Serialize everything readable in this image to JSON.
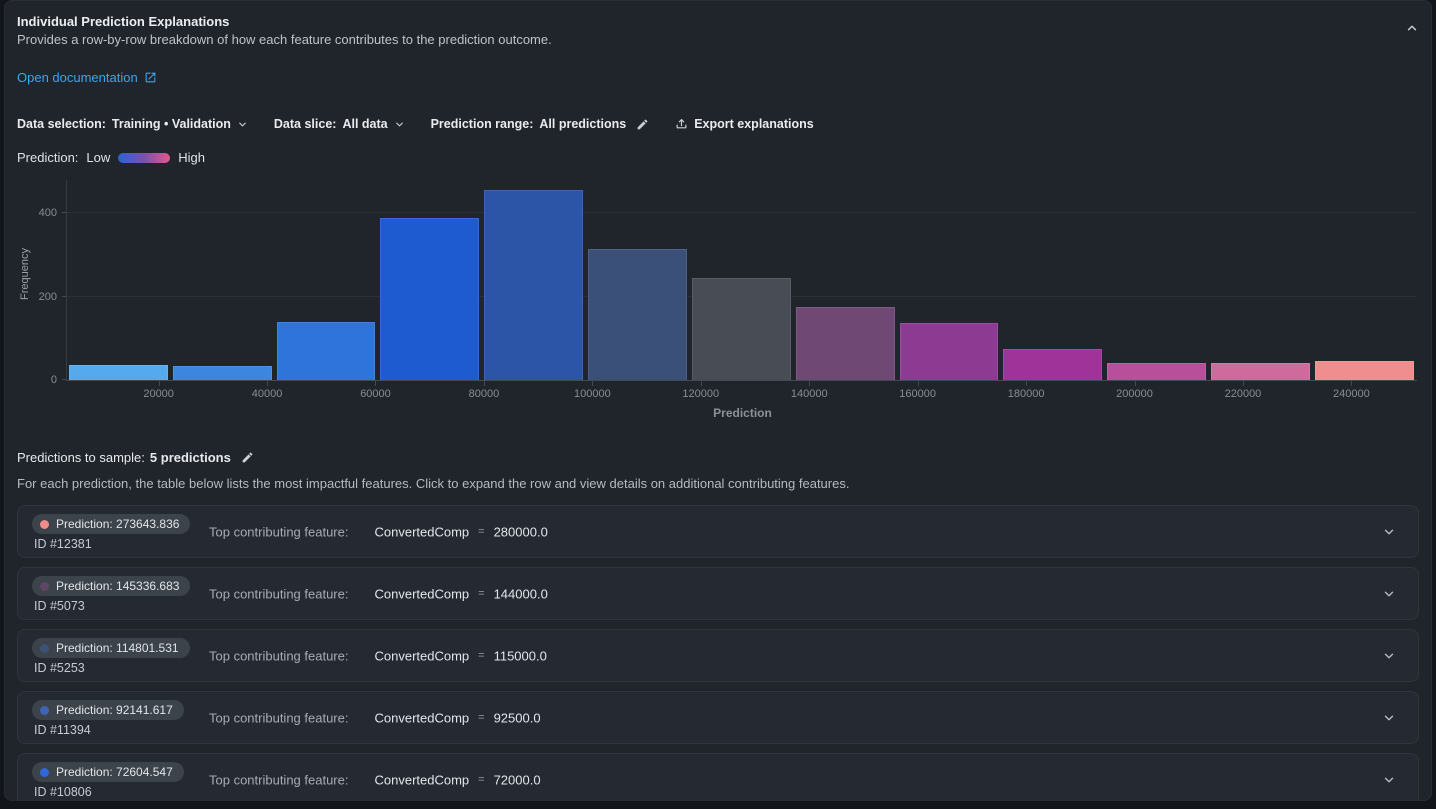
{
  "panel": {
    "title": "Individual Prediction Explanations",
    "subtitle": "Provides a row-by-row breakdown of how each feature contributes to the prediction outcome.",
    "doc_link": "Open documentation"
  },
  "toolbar": {
    "data_selection_label": "Data selection:",
    "data_selection_value": "Training • Validation",
    "data_slice_label": "Data slice:",
    "data_slice_value": "All data",
    "prediction_range_label": "Prediction range:",
    "prediction_range_value": "All predictions",
    "export_label": "Export explanations"
  },
  "legend": {
    "label": "Prediction:",
    "low": "Low",
    "high": "High",
    "gradient": [
      "#2c63d5",
      "#7a50b0",
      "#e4578c"
    ]
  },
  "chart_data": {
    "type": "bar",
    "title": "Prediction histogram",
    "xlabel": "Prediction",
    "ylabel": "Frequency",
    "xlim": [
      3100,
      252100
    ],
    "ylim": [
      0,
      480
    ],
    "yticks": [
      0,
      200,
      400
    ],
    "xticks": [
      20000,
      40000,
      60000,
      80000,
      100000,
      120000,
      140000,
      160000,
      180000,
      200000,
      220000,
      240000
    ],
    "grid": true,
    "bins": [
      {
        "start": 3100,
        "end": 22250,
        "count": 36,
        "color": "#55a9ec"
      },
      {
        "start": 22250,
        "end": 41400,
        "count": 33,
        "color": "#3c86e0"
      },
      {
        "start": 41400,
        "end": 60550,
        "count": 140,
        "color": "#2e74da"
      },
      {
        "start": 60550,
        "end": 79700,
        "count": 390,
        "color": "#1f5bd0"
      },
      {
        "start": 79700,
        "end": 98850,
        "count": 455,
        "color": "#2c55a7"
      },
      {
        "start": 98850,
        "end": 118000,
        "count": 315,
        "color": "#3a5078"
      },
      {
        "start": 118000,
        "end": 137150,
        "count": 245,
        "color": "#474c55"
      },
      {
        "start": 137150,
        "end": 156300,
        "count": 175,
        "color": "#6f4874"
      },
      {
        "start": 156300,
        "end": 175450,
        "count": 138,
        "color": "#8d3b92"
      },
      {
        "start": 175450,
        "end": 194600,
        "count": 74,
        "color": "#a0339a"
      },
      {
        "start": 194600,
        "end": 213750,
        "count": 40,
        "color": "#b84f9b"
      },
      {
        "start": 213750,
        "end": 232900,
        "count": 40,
        "color": "#ce6b9c"
      },
      {
        "start": 232900,
        "end": 252100,
        "count": 45,
        "color": "#ef8d8f"
      }
    ]
  },
  "sampling": {
    "label": "Predictions to sample:",
    "value": "5 predictions",
    "description": "For each prediction, the table below lists the most impactful features. Click to expand the row and view details on additional contributing features."
  },
  "rows": [
    {
      "prediction_label": "Prediction: 273643.836",
      "id": "ID #12381",
      "feature_label": "Top contributing feature:",
      "feature": "ConvertedComp",
      "eq": "=",
      "value": "280000.0",
      "dot_color": "#ef8b89"
    },
    {
      "prediction_label": "Prediction: 145336.683",
      "id": "ID #5073",
      "feature_label": "Top contributing feature:",
      "feature": "ConvertedComp",
      "eq": "=",
      "value": "144000.0",
      "dot_color": "#5f4566"
    },
    {
      "prediction_label": "Prediction: 114801.531",
      "id": "ID #5253",
      "feature_label": "Top contributing feature:",
      "feature": "ConvertedComp",
      "eq": "=",
      "value": "115000.0",
      "dot_color": "#3c5176"
    },
    {
      "prediction_label": "Prediction: 92141.617",
      "id": "ID #11394",
      "feature_label": "Top contributing feature:",
      "feature": "ConvertedComp",
      "eq": "=",
      "value": "92500.0",
      "dot_color": "#3e64b5"
    },
    {
      "prediction_label": "Prediction: 72604.547",
      "id": "ID #10806",
      "feature_label": "Top contributing feature:",
      "feature": "ConvertedComp",
      "eq": "=",
      "value": "72000.0",
      "dot_color": "#2f68d9"
    }
  ]
}
